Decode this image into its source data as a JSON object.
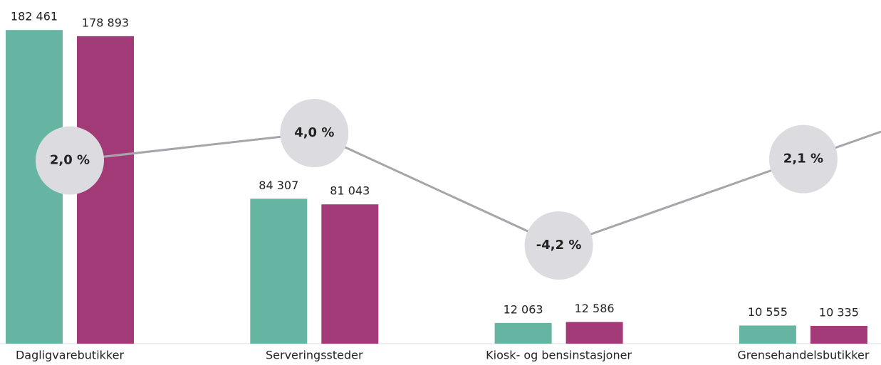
{
  "chart_data": {
    "type": "bar",
    "categories": [
      "Dagligvarebutikker",
      "Serveringssteder",
      "Kiosk- og bensinstasjoner",
      "Grensehandelsbutikker"
    ],
    "series": [
      {
        "color": "#66b5a3",
        "values": [
          182461,
          84307,
          12063,
          10555
        ],
        "value_labels": [
          "182 461",
          "84 307",
          "12 063",
          "10 555"
        ]
      },
      {
        "color": "#a33a78",
        "values": [
          178893,
          81043,
          12586,
          10335
        ],
        "value_labels": [
          "178 893",
          "81 043",
          "12 586",
          "10 335"
        ]
      },
      {
        "type": "line",
        "axis": "y2",
        "color": "#a7a5ab",
        "marker_color": "#dcdce0",
        "values": [
          2.0,
          4.0,
          -4.2,
          2.1
        ],
        "value_labels": [
          "2,0 %",
          "4,0 %",
          "-4,2 %",
          "2,1 %"
        ]
      }
    ],
    "ylim": [
      0,
      190000
    ],
    "y2lim": [
      -11.36,
      12.46
    ]
  }
}
